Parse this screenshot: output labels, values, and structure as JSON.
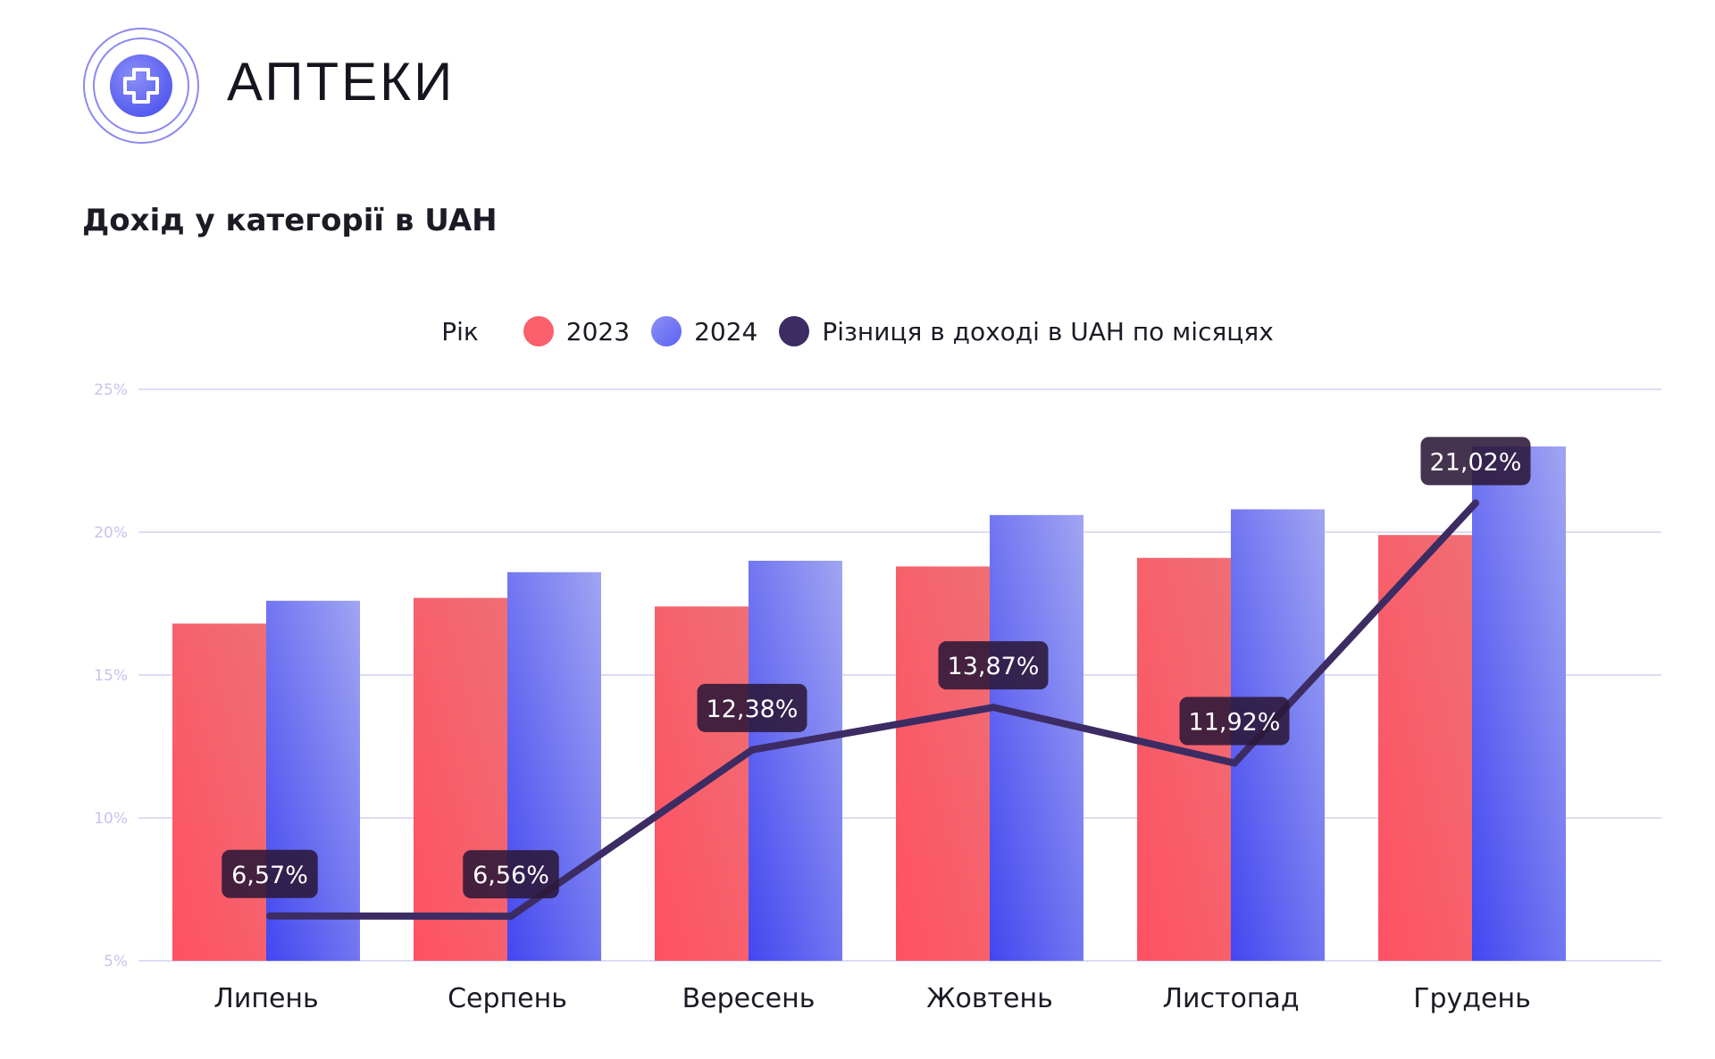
{
  "header": {
    "brand_name": "АПТЕКИ",
    "page_title": "Дохід у категорії в UAH"
  },
  "icons": {
    "logo": "medical-cross-icon"
  },
  "colors": {
    "series_2023": "#fb5f6b",
    "series_2024": "#5b62f3",
    "diff_line": "#3c2c63",
    "grid": "#d2d1f1",
    "tick": "#c5c4ee",
    "logo_ring": "#7b78f0",
    "logo_fill": "#5b62f3"
  },
  "chart_data": {
    "type": "bar",
    "legend_title": "Рік",
    "legend_placement": "top",
    "grid": true,
    "categories": [
      "Липень",
      "Серпень",
      "Вересень",
      "Жовтень",
      "Листопад",
      "Грудень"
    ],
    "y_ticks": [
      "5%",
      "10%",
      "15%",
      "20%",
      "25%"
    ],
    "ylim": [
      5,
      25
    ],
    "series": [
      {
        "name": "2023",
        "type": "bar",
        "values": [
          16.8,
          17.7,
          17.4,
          18.8,
          19.1,
          19.9
        ]
      },
      {
        "name": "2024",
        "type": "bar",
        "values": [
          17.6,
          18.6,
          19.0,
          20.6,
          20.8,
          23.0
        ]
      },
      {
        "name": "Різниця в доході в UAH по місяцях",
        "type": "line",
        "values": [
          6.57,
          6.56,
          12.38,
          13.87,
          11.92,
          21.02
        ],
        "labels": [
          "6,57%",
          "6,56%",
          "12,38%",
          "13,87%",
          "11,92%",
          "21,02%"
        ]
      }
    ]
  }
}
